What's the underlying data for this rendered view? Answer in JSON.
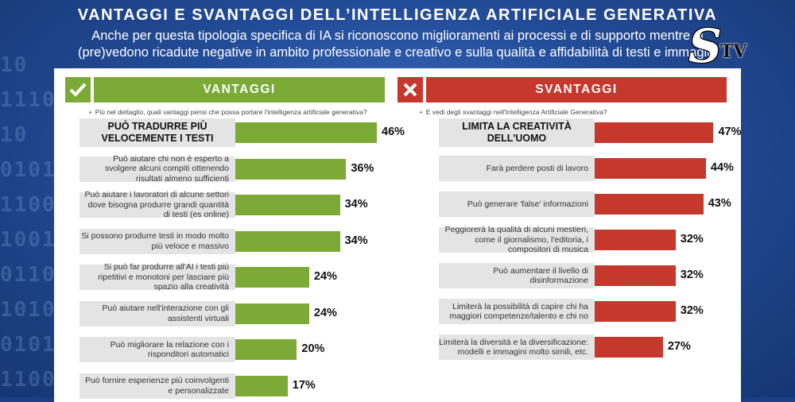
{
  "title": "VANTAGGI E SVANTAGGI DELL’INTELLIGENZA ARTIFICIALE GENERATIVA",
  "subtitle_line1": "Anche per questa tipologia specifica di IA si riconoscono miglioramenti ai processi e di supporto mentre si",
  "subtitle_line2": "(pre)vedono ricadute negative in ambito professionale e creativo e sulla qualità e affidabilità di testi e immagini",
  "logo": {
    "letter": "S",
    "text": "TV"
  },
  "colors": {
    "green": "#7bab36",
    "red": "#c6372c",
    "background": "#1b3f86"
  },
  "chart_data": [
    {
      "type": "bar",
      "orientation": "horizontal",
      "header": "VANTAGGI",
      "header_icon": "check-icon",
      "question": "Più nel dettaglio, quali vantaggi pensi che possa portare l'intelligenza artificiale generativa?",
      "color": "#7bab36",
      "categories": [
        "PUÒ TRADURRE PIÙ VELOCEMENTE I TESTI",
        "Può aiutare chi non è esperto a svolgere alcuni compiti ottenendo risultati almeno sufficienti",
        "Può aiutare i lavoratori di alcune settori dove bisogna produrre grandi quantità di testi (es online)",
        "Si possono produrre testi in modo molto più veloce e massivo",
        "Si può far produrre all'AI i testi più ripetitivi e monotoni per lasciare più spazio alla creatività",
        "Può aiutare nell'interazione con gli assistenti virtuali",
        "Può migliorare la relazione con i risponditori automatici",
        "Può fornire esperienze più coinvolgenti e personalizzate"
      ],
      "values": [
        46,
        36,
        34,
        34,
        24,
        24,
        20,
        17
      ],
      "value_labels": [
        "46%",
        "36%",
        "34%",
        "34%",
        "24%",
        "24%",
        "20%",
        "17%"
      ]
    },
    {
      "type": "bar",
      "orientation": "horizontal",
      "header": "SVANTAGGI",
      "header_icon": "cross-icon",
      "question": "E vedi degli svantaggi nell'Intelligenza Artificiale Generativa?",
      "color": "#c6372c",
      "categories": [
        "LIMITA LA CREATIVITÀ DELL'UOMO",
        "Farà perdere posti di lavoro",
        "Può generare 'false' informazioni",
        "Peggiorerà la qualità di alcuni mestieri, come il giornalismo, l'editoria, i compositori di musica",
        "Può aumentare il livello di disinformazione",
        "Limiterà la possibilità di capire chi ha maggiori competenze/talento e chi no",
        "Limiterà la diversità e la diversificazione: modelli e immagini molto simili, etc."
      ],
      "values": [
        47,
        44,
        43,
        32,
        32,
        32,
        27
      ],
      "value_labels": [
        "47%",
        "44%",
        "43%",
        "32%",
        "32%",
        "32%",
        "27%"
      ]
    }
  ]
}
